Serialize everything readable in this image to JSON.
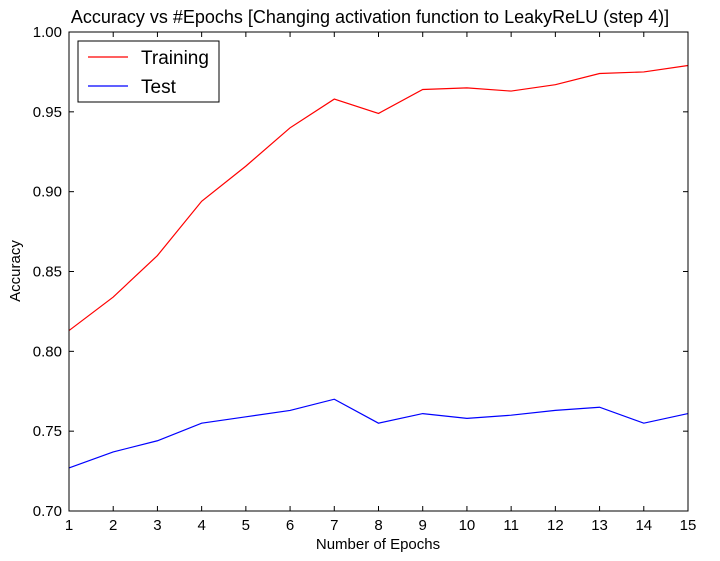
{
  "chart_data": {
    "type": "line",
    "title": "Accuracy vs #Epochs [Changing activation function to LeakyReLU (step 4)]",
    "xlabel": "Number of Epochs",
    "ylabel": "Accuracy",
    "xlim": [
      1,
      15
    ],
    "ylim": [
      0.7,
      1.0
    ],
    "x": [
      1,
      2,
      3,
      4,
      5,
      6,
      7,
      8,
      9,
      10,
      11,
      12,
      13,
      14,
      15
    ],
    "x_ticks": [
      "1",
      "2",
      "3",
      "4",
      "5",
      "6",
      "7",
      "8",
      "9",
      "10",
      "11",
      "12",
      "13",
      "14",
      "15"
    ],
    "y_ticks": [
      0.7,
      0.75,
      0.8,
      0.85,
      0.9,
      0.95,
      1.0
    ],
    "y_tick_labels": [
      "0.70",
      "0.75",
      "0.80",
      "0.85",
      "0.90",
      "0.95",
      "1.00"
    ],
    "grid": false,
    "legend_position": "top-left",
    "series": [
      {
        "name": "Training",
        "color": "#ff0000",
        "values": [
          0.813,
          0.834,
          0.86,
          0.894,
          0.916,
          0.94,
          0.958,
          0.949,
          0.964,
          0.965,
          0.963,
          0.967,
          0.974,
          0.975,
          0.979
        ]
      },
      {
        "name": "Test",
        "color": "#0000ff",
        "values": [
          0.727,
          0.737,
          0.744,
          0.755,
          0.759,
          0.763,
          0.77,
          0.755,
          0.761,
          0.758,
          0.76,
          0.763,
          0.765,
          0.755,
          0.761
        ]
      }
    ]
  }
}
